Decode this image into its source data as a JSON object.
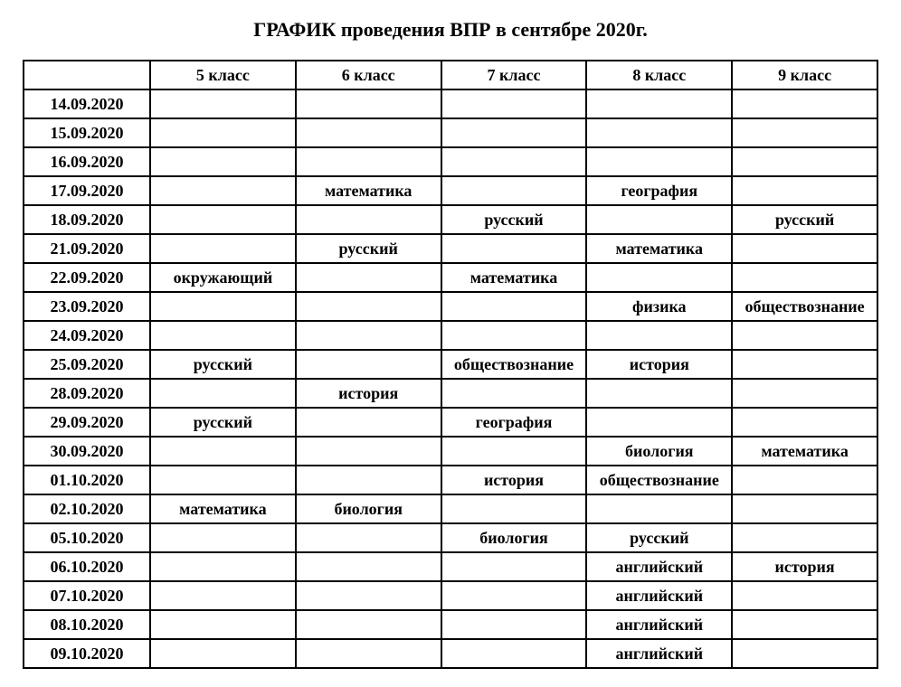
{
  "title": "ГРАФИК проведения ВПР в сентябре 2020г.",
  "columns": [
    "",
    "5 класс",
    "6 класс",
    "7 класс",
    "8 класс",
    "9 класс"
  ],
  "rows": [
    {
      "date": "14.09.2020",
      "c5": "",
      "c6": "",
      "c7": "",
      "c8": "",
      "c9": ""
    },
    {
      "date": "15.09.2020",
      "c5": "",
      "c6": "",
      "c7": "",
      "c8": "",
      "c9": ""
    },
    {
      "date": "16.09.2020",
      "c5": "",
      "c6": "",
      "c7": "",
      "c8": "",
      "c9": ""
    },
    {
      "date": "17.09.2020",
      "c5": "",
      "c6": "математика",
      "c7": "",
      "c8": "география",
      "c9": ""
    },
    {
      "date": "18.09.2020",
      "c5": "",
      "c6": "",
      "c7": "русский",
      "c8": "",
      "c9": "русский"
    },
    {
      "date": "21.09.2020",
      "c5": "",
      "c6": "русский",
      "c7": "",
      "c8": "математика",
      "c9": ""
    },
    {
      "date": "22.09.2020",
      "c5": "окружающий",
      "c6": "",
      "c7": "математика",
      "c8": "",
      "c9": ""
    },
    {
      "date": "23.09.2020",
      "c5": "",
      "c6": "",
      "c7": "",
      "c8": "физика",
      "c9": "обществознание"
    },
    {
      "date": "24.09.2020",
      "c5": "",
      "c6": "",
      "c7": "",
      "c8": "",
      "c9": ""
    },
    {
      "date": "25.09.2020",
      "c5": "русский",
      "c6": "",
      "c7": "обществознание",
      "c8": "история",
      "c9": ""
    },
    {
      "date": "28.09.2020",
      "c5": "",
      "c6": "история",
      "c7": "",
      "c8": "",
      "c9": ""
    },
    {
      "date": "29.09.2020",
      "c5": "русский",
      "c6": "",
      "c7": "география",
      "c8": "",
      "c9": ""
    },
    {
      "date": "30.09.2020",
      "c5": "",
      "c6": "",
      "c7": "",
      "c8": "биология",
      "c9": "математика"
    },
    {
      "date": "01.10.2020",
      "c5": "",
      "c6": "",
      "c7": "история",
      "c8": "обществознание",
      "c9": ""
    },
    {
      "date": "02.10.2020",
      "c5": "математика",
      "c6": "биология",
      "c7": "",
      "c8": "",
      "c9": ""
    },
    {
      "date": "05.10.2020",
      "c5": "",
      "c6": "",
      "c7": "биология",
      "c8": "русский",
      "c9": ""
    },
    {
      "date": "06.10.2020",
      "c5": "",
      "c6": "",
      "c7": "",
      "c8": "английский",
      "c9": "история"
    },
    {
      "date": "07.10.2020",
      "c5": "",
      "c6": "",
      "c7": "",
      "c8": "английский",
      "c9": ""
    },
    {
      "date": "08.10.2020",
      "c5": "",
      "c6": "",
      "c7": "",
      "c8": "английский",
      "c9": ""
    },
    {
      "date": "09.10.2020",
      "c5": "",
      "c6": "",
      "c7": "",
      "c8": "английский",
      "c9": ""
    }
  ]
}
